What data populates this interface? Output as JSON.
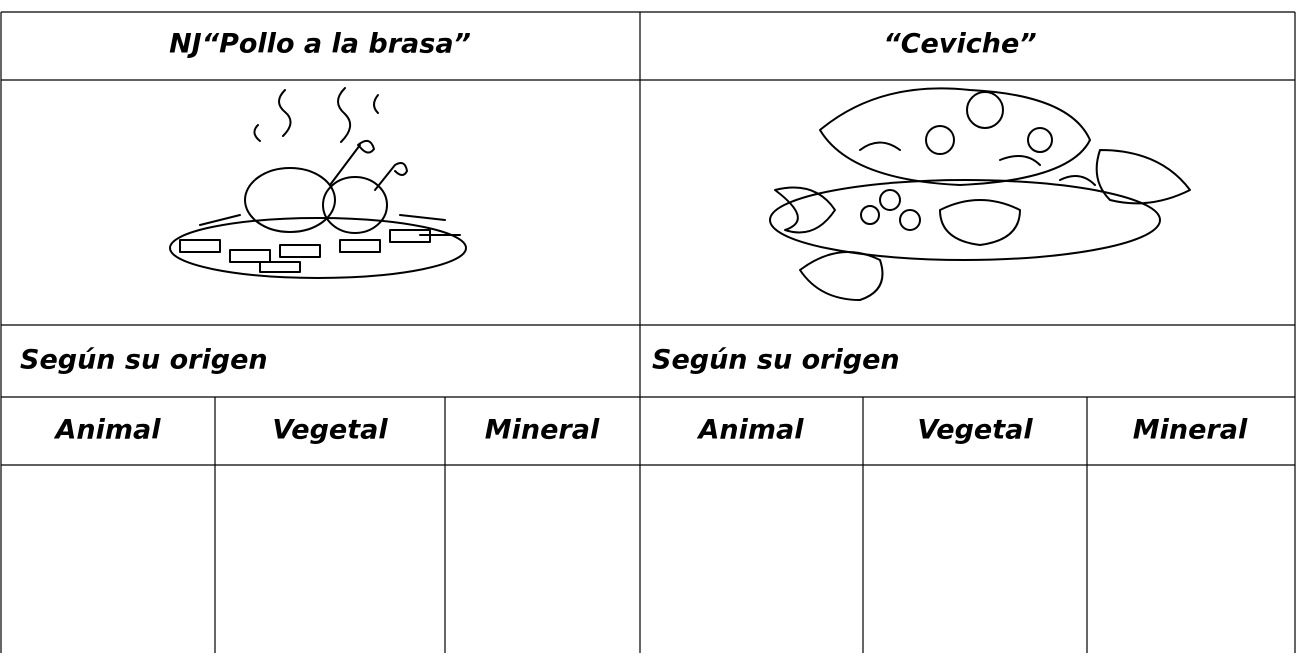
{
  "table": {
    "dishes": [
      {
        "name": "NJ“Pollo a la brasa”",
        "origin_label": "Según su origen",
        "columns": [
          "Animal",
          "Vegetal",
          "Mineral"
        ]
      },
      {
        "name": "“Ceviche”",
        "origin_label": "Según su origen",
        "columns": [
          "Animal",
          "Vegetal",
          "Mineral"
        ]
      }
    ]
  }
}
